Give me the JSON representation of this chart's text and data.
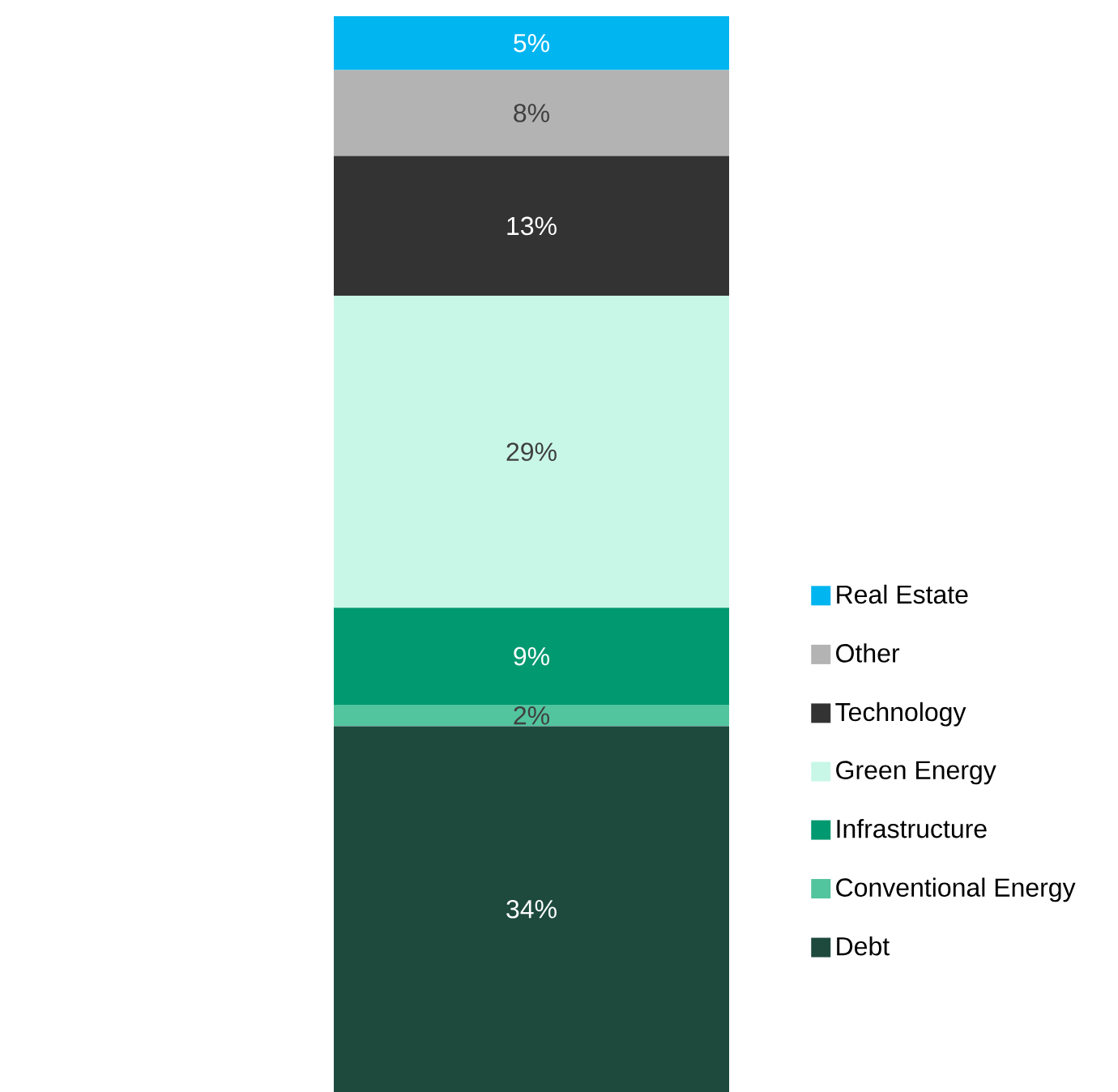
{
  "chart_data": {
    "type": "bar",
    "stacked": true,
    "categories": [
      null
    ],
    "tick_labels": false,
    "legend": "right",
    "series": [
      {
        "name": "Debt",
        "color": "#1e4a3e",
        "values": [
          34
        ],
        "value_labels": [
          "34%"
        ]
      },
      {
        "name": "Conventional Energy",
        "color": "#52c49e",
        "values": [
          2
        ],
        "value_labels": [
          "2%"
        ]
      },
      {
        "name": "Infrastructure",
        "color": "#009970",
        "values": [
          9
        ],
        "value_labels": [
          "9%"
        ]
      },
      {
        "name": "Green Energy",
        "color": "#c8f7e8",
        "values": [
          29
        ],
        "value_labels": [
          "29%"
        ]
      },
      {
        "name": "Technology",
        "color": "#333333",
        "values": [
          13
        ],
        "value_labels": [
          "13%"
        ]
      },
      {
        "name": "Other",
        "color": "#b3b3b3",
        "values": [
          8
        ],
        "value_labels": [
          "8%"
        ]
      },
      {
        "name": "Real Estate",
        "color": "#00b5f0",
        "values": [
          5
        ],
        "value_labels": [
          "5%"
        ]
      }
    ]
  }
}
